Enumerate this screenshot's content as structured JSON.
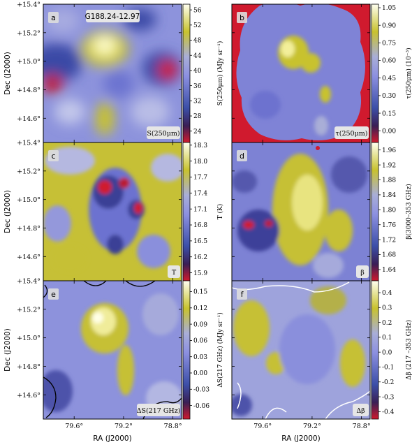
{
  "figure": {
    "xlabel": "RA (J2000)",
    "ylabel": "Dec (J2000)",
    "x_ticks": [
      "79.6°",
      "79.2°",
      "78.8°"
    ],
    "y_ticks": [
      "+15.4°",
      "+15.2°",
      "+15.0°",
      "+14.8°",
      "+14.6°"
    ]
  },
  "chart_data": [
    {
      "type": "heatmap",
      "panel": "a",
      "title": "G188.24-12.97",
      "map_label": "S(250μm)",
      "colorbar_label": "S(250μm) (MJy sr⁻¹)",
      "colorbar_ticks": [
        "56",
        "52",
        "48",
        "44",
        "40",
        "36",
        "32",
        "28",
        "24"
      ],
      "range": [
        21,
        57.5
      ],
      "colors": {
        "low": "#d01a2e",
        "mid": "#6d72d8",
        "high": "#fffff0",
        "accent": "#c9c12a"
      }
    },
    {
      "type": "heatmap",
      "panel": "b",
      "map_label": "τ(250μm)",
      "colorbar_label": "τ(250μm) (10⁻³)",
      "colorbar_ticks": [
        "1.05",
        "0.90",
        "0.75",
        "0.60",
        "0.45",
        "0.30",
        "0.15",
        "0.00"
      ],
      "range": [
        -0.1,
        1.08
      ]
    },
    {
      "type": "heatmap",
      "panel": "c",
      "map_label": "T",
      "colorbar_label": "T (K)",
      "colorbar_ticks": [
        "18.3",
        "18.0",
        "17.7",
        "17.4",
        "17.1",
        "16.8",
        "16.5",
        "16.2",
        "15.9"
      ],
      "range": [
        15.75,
        18.35
      ]
    },
    {
      "type": "heatmap",
      "panel": "d",
      "map_label": "β",
      "colorbar_label": "β(3000–353 GHz)",
      "colorbar_ticks": [
        "1.96",
        "1.92",
        "1.88",
        "1.84",
        "1.80",
        "1.76",
        "1.72",
        "1.68",
        "1.64"
      ],
      "range": [
        1.61,
        1.98
      ]
    },
    {
      "type": "heatmap",
      "panel": "e",
      "map_label": "ΔS(217 GHz)",
      "colorbar_label": "ΔS(217 GHz) (MJy sr⁻¹)",
      "colorbar_ticks": [
        "0.15",
        "0.12",
        "0.09",
        "0.06",
        "0.03",
        "0.00",
        "-0.03",
        "-0.06"
      ],
      "range": [
        -0.085,
        0.17
      ]
    },
    {
      "type": "heatmap",
      "panel": "f",
      "map_label": "Δβ",
      "colorbar_label": "Δβ (217 –353 GHz)",
      "colorbar_ticks": [
        "0.4",
        "0.3",
        "0.2",
        "0.1",
        "0.0",
        "-0.1",
        "-0.2",
        "-0.3",
        "-0.4"
      ],
      "range": [
        -0.45,
        0.48
      ]
    }
  ]
}
